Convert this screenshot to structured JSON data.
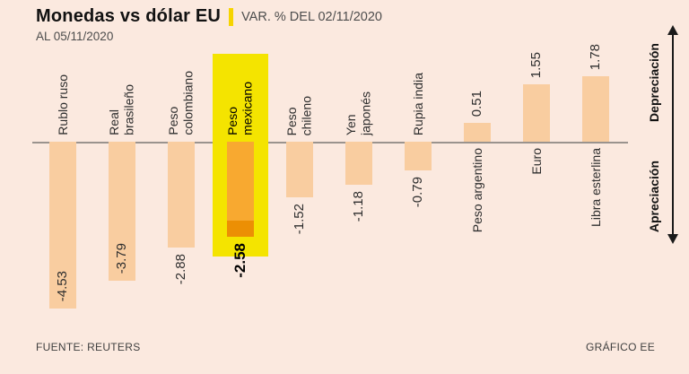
{
  "header": {
    "title": "Monedas vs dólar EU",
    "variation_label": "VAR. % DEL 02/11/2020",
    "as_of": "AL 05/11/2020"
  },
  "chart_data": {
    "type": "bar",
    "title": "Monedas vs dólar EU",
    "subtitle": "VAR. % DEL 02/11/2020",
    "as_of": "AL 05/11/2020",
    "categories": [
      "Rublo ruso",
      "Real brasileño",
      "Peso colombiano",
      "Peso mexicano",
      "Peso chileno",
      "Yen japonés",
      "Rupia india",
      "Peso argentino",
      "Euro",
      "Libra esterlina"
    ],
    "labels_display": [
      "Rublo ruso",
      "Real\nbrasileño",
      "Peso\ncolombiano",
      "Peso\nmexicano",
      "Peso\nchileno",
      "Yen\njaponés",
      "Rupia india",
      "Peso argentino",
      "Euro",
      "Libra esterlina"
    ],
    "values": [
      -4.53,
      -3.79,
      -2.88,
      -2.58,
      -1.52,
      -1.18,
      -0.79,
      0.51,
      1.55,
      1.78
    ],
    "value_labels": [
      "-4.53",
      "-3.79",
      "-2.88",
      "-2.58",
      "-1.52",
      "-1.18",
      "-0.79",
      "0.51",
      "1.55",
      "1.78"
    ],
    "highlighted_category": "Peso mexicano",
    "ylim": [
      -5,
      2
    ],
    "orientation": "vertical",
    "grid": false,
    "axis_annotations": {
      "up": "Depreciación",
      "down": "Apreciación"
    },
    "colors": {
      "background": "#fbe9df",
      "bar": "#f9cda0",
      "highlight_bar": "#f8a930",
      "highlight_bar_cap": "#ec8f04",
      "highlight_band": "#f4e400",
      "zero_line": "#9a938e",
      "title_separator": "#f6d400"
    }
  },
  "footer": {
    "source": "FUENTE: REUTERS",
    "credit": "GRÁFICO EE"
  }
}
